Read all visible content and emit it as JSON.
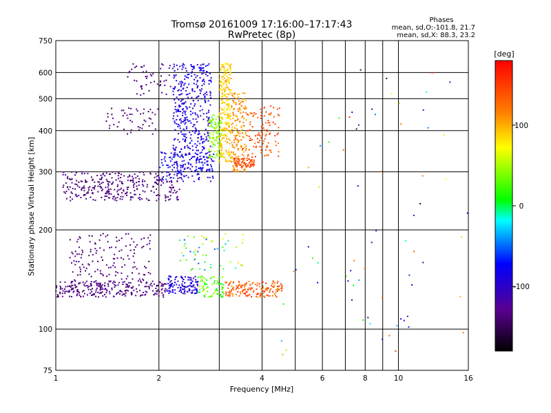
{
  "chart_data": {
    "type": "scatter",
    "title": "Tromsø 20161009 17:16:00–17:17:43",
    "subtitle": "RwPretec (8p)",
    "xlabel": "Frequency [MHz]",
    "ylabel": "Stationary phase Virtual Height [km]",
    "x_scale": "log",
    "y_scale": "log",
    "xlim": [
      1,
      16
    ],
    "ylim": [
      75,
      750
    ],
    "x_ticks": [
      1,
      2,
      4,
      6,
      8,
      10,
      16
    ],
    "x_gridlines": [
      2,
      3,
      4,
      5,
      6,
      7,
      8,
      9,
      10
    ],
    "y_ticks": [
      75,
      100,
      200,
      300,
      400,
      500,
      600,
      750
    ],
    "y_gridlines": [
      100,
      200,
      300,
      400,
      500,
      600
    ],
    "grid": true,
    "phase_header": {
      "title": "Phases",
      "line1": "mean, sd,O:-101.8, 21.7",
      "line2": "mean, sd,X:  88.3, 23.2"
    },
    "colorbar": {
      "label": "[deg]",
      "ticks": [
        100,
        0,
        -100
      ],
      "range": [
        -180,
        180
      ],
      "colors": [
        "#000000",
        "#5a0090",
        "#0000ff",
        "#00ffff",
        "#00ff00",
        "#ffff00",
        "#ff8000",
        "#ff0000"
      ]
    },
    "clusters": [
      {
        "x": [
          1.05,
          2.3
        ],
        "y": [
          245,
          300
        ],
        "phase": [
          -150,
          -120
        ],
        "count": 320
      },
      {
        "x": [
          1.4,
          2.0
        ],
        "y": [
          390,
          470
        ],
        "phase": [
          -150,
          -120
        ],
        "count": 50
      },
      {
        "x": [
          1.6,
          2.2
        ],
        "y": [
          510,
          640
        ],
        "phase": [
          -150,
          -120
        ],
        "count": 50
      },
      {
        "x": [
          2.2,
          2.85
        ],
        "y": [
          300,
          640
        ],
        "phase": [
          -110,
          -70
        ],
        "count": 420
      },
      {
        "x": [
          2.0,
          2.9
        ],
        "y": [
          280,
          345
        ],
        "phase": [
          -110,
          -60
        ],
        "count": 120
      },
      {
        "x": [
          2.8,
          3.05
        ],
        "y": [
          330,
          450
        ],
        "phase": [
          20,
          60
        ],
        "count": 110
      },
      {
        "x": [
          3.0,
          3.25
        ],
        "y": [
          320,
          640
        ],
        "phase": [
          70,
          110
        ],
        "count": 260
      },
      {
        "x": [
          3.25,
          3.6
        ],
        "y": [
          300,
          520
        ],
        "phase": [
          90,
          130
        ],
        "count": 180
      },
      {
        "x": [
          3.3,
          3.8
        ],
        "y": [
          310,
          330
        ],
        "phase": [
          130,
          160
        ],
        "count": 70
      },
      {
        "x": [
          3.6,
          4.5
        ],
        "y": [
          330,
          480
        ],
        "phase": [
          120,
          160
        ],
        "count": 110
      },
      {
        "x": [
          1.0,
          2.1
        ],
        "y": [
          125,
          140
        ],
        "phase": [
          -150,
          -120
        ],
        "count": 260
      },
      {
        "x": [
          1.1,
          1.9
        ],
        "y": [
          140,
          195
        ],
        "phase": [
          -150,
          -120
        ],
        "count": 140
      },
      {
        "x": [
          2.1,
          2.6
        ],
        "y": [
          128,
          145
        ],
        "phase": [
          -110,
          -70
        ],
        "count": 120
      },
      {
        "x": [
          2.6,
          3.1
        ],
        "y": [
          125,
          145
        ],
        "phase": [
          0,
          60
        ],
        "count": 80
      },
      {
        "x": [
          3.1,
          4.6
        ],
        "y": [
          125,
          140
        ],
        "phase": [
          110,
          160
        ],
        "count": 160
      },
      {
        "x": [
          2.3,
          3.6
        ],
        "y": [
          150,
          195
        ],
        "phase": [
          -60,
          100
        ],
        "count": 60
      },
      {
        "x": [
          4.5,
          16
        ],
        "y": [
          80,
          640
        ],
        "phase": [
          -170,
          170
        ],
        "count": 70
      }
    ]
  }
}
